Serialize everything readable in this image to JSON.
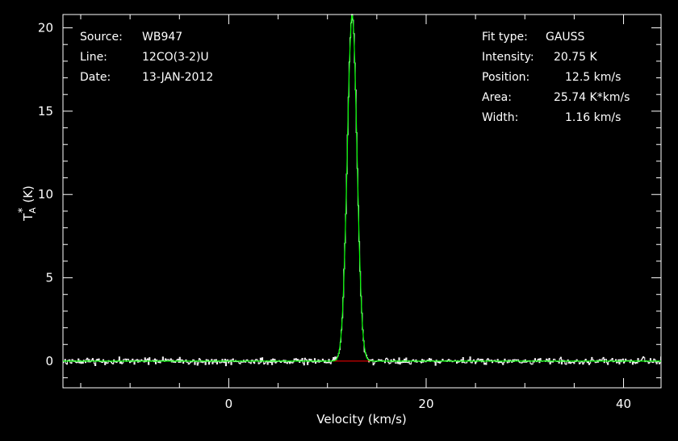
{
  "chart_data": {
    "type": "line",
    "xlabel": "Velocity (km/s)",
    "ylabel_base": "T",
    "ylabel_sub": "A",
    "ylabel_sup": "*",
    "ylabel_unit": "(K)",
    "xlim": [
      -16.8,
      43.8
    ],
    "ylim": [
      -1.6,
      20.8
    ],
    "x_ticks": [
      0,
      20,
      40
    ],
    "y_ticks": [
      0,
      5,
      10,
      15,
      20
    ],
    "info_left": [
      {
        "key": "Source:",
        "value": "WB947"
      },
      {
        "key": "Line:",
        "value": "12CO(3-2)U"
      },
      {
        "key": "Date:",
        "value": "13-JAN-2012"
      }
    ],
    "info_right": [
      {
        "key": "Fit type:",
        "value": "GAUSS"
      },
      {
        "key": "Intensity:",
        "value": "20.75 K"
      },
      {
        "key": "Position:",
        "value": "12.5 km/s"
      },
      {
        "key": "Area:",
        "value": "25.74 K*km/s"
      },
      {
        "key": "Width:",
        "value": "1.16 km/s"
      }
    ],
    "fit": {
      "type": "GAUSS",
      "amplitude": 20.75,
      "center": 12.5,
      "width": 1.16
    },
    "baseline_range": [
      10.5,
      14.5
    ],
    "noise_rms": 0.2,
    "colors": {
      "spectrum": "#ffffff",
      "fit": "#00ff00",
      "baseline": "#ff0000",
      "axes": "#ffffff"
    }
  }
}
